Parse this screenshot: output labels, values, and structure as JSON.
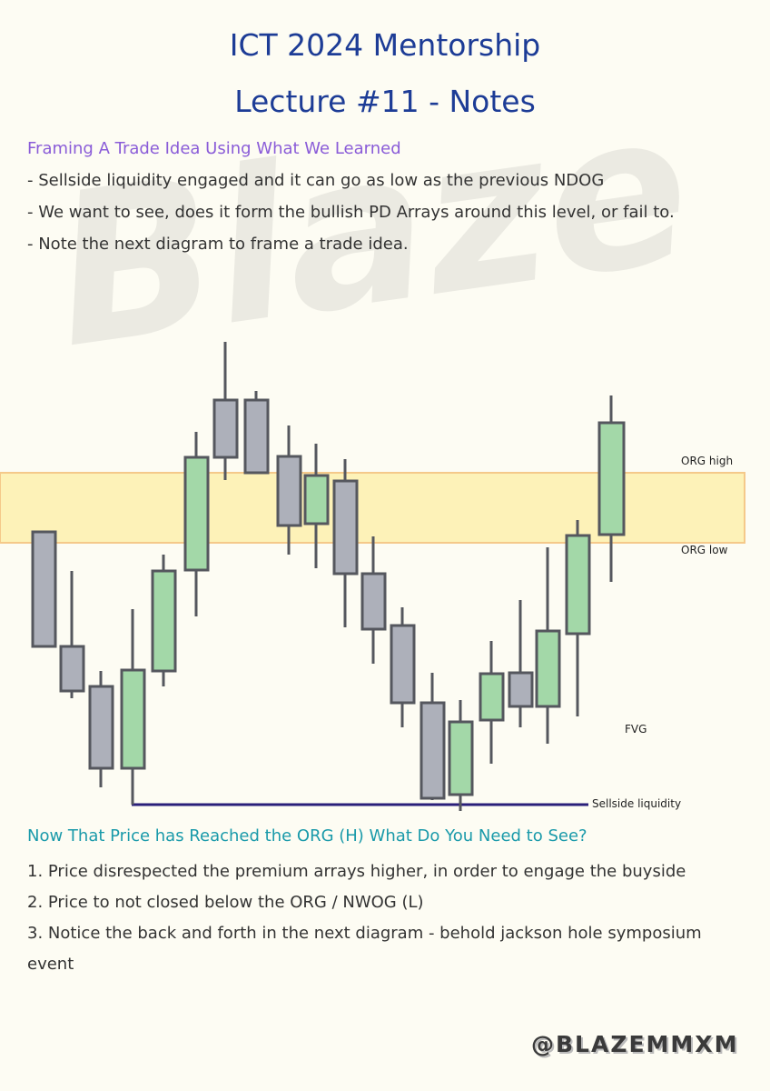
{
  "header": {
    "title_line1": "ICT 2024 Mentorship",
    "title_line2": "Lecture #11 - Notes"
  },
  "watermark": "Blaze",
  "section1": {
    "heading": "Framing A Trade Idea Using What We Learned",
    "lines": [
      "- Sellside liquidity engaged and it can go as low as the previous NDOG",
      "- We want to see, does it form the bullish PD Arrays around this level, or fail to.",
      "- Note the next diagram to frame a trade idea."
    ]
  },
  "diagram": {
    "labels": {
      "org_high": "ORG high",
      "org_low": "ORG low",
      "fvg": "FVG",
      "sellside": "Sellside liquidity"
    }
  },
  "section2": {
    "heading": "Now That Price has Reached the ORG (H) What Do You Need to See?",
    "lines": [
      "1. Price disrespected the premium arrays higher, in order to engage the buyside",
      "2. Price to not closed below the ORG / NWOG (L)",
      "3. Notice the back and forth in the next diagram - behold jackson hole symposium event"
    ]
  },
  "footer": {
    "handle": "@BLAZEMMXM"
  }
}
